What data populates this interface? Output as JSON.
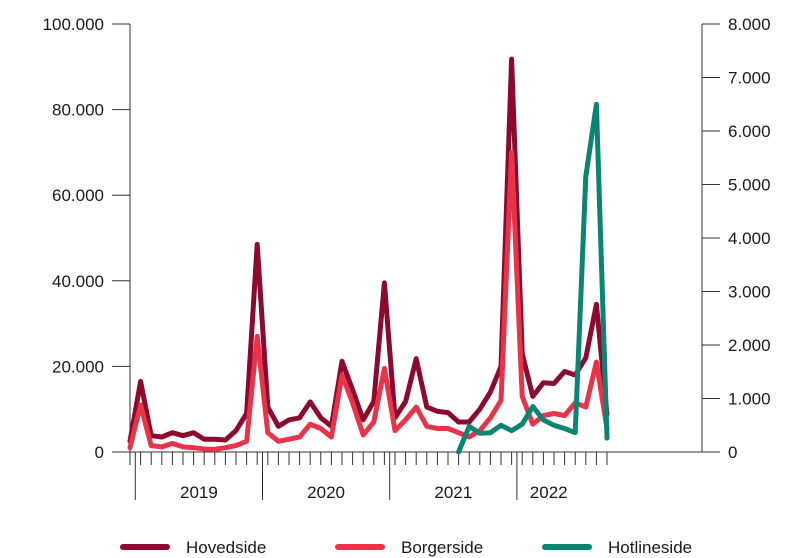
{
  "chart_data": {
    "type": "line",
    "title": "",
    "xlabel": "",
    "ylabel": "",
    "y2label": "",
    "x_start_month": "2018-12",
    "year_labels": [
      {
        "label": "2019",
        "first_index": 1,
        "last_index": 12
      },
      {
        "label": "2020",
        "first_index": 13,
        "last_index": 24
      },
      {
        "label": "2021",
        "first_index": 25,
        "last_index": 36
      },
      {
        "label": "2022",
        "first_index": 37,
        "last_index": 42
      }
    ],
    "ylim": [
      0,
      100000
    ],
    "yticks": [
      0,
      20000,
      40000,
      60000,
      80000,
      100000
    ],
    "ytick_labels": [
      "0",
      "20.000",
      "40.000",
      "60.000",
      "80.000",
      "100.000"
    ],
    "y2lim": [
      0,
      8000
    ],
    "y2ticks": [
      0,
      1000,
      2000,
      3000,
      4000,
      5000,
      6000,
      7000,
      8000
    ],
    "y2tick_labels": [
      "0",
      "1.000",
      "2.000",
      "3.000",
      "4.000",
      "5.000",
      "6.000",
      "7.000",
      "8.000"
    ],
    "grid": false,
    "legend_position": "bottom",
    "series": [
      {
        "name": "Hovedside",
        "axis": "left",
        "color": "#8c0a2e",
        "start_index": 0,
        "values": [
          2500,
          16500,
          3800,
          3500,
          4500,
          3800,
          4500,
          3000,
          3000,
          2800,
          5000,
          9000,
          48500,
          10500,
          6000,
          7500,
          8000,
          11700,
          8000,
          6000,
          21200,
          14500,
          7500,
          11800,
          39500,
          8000,
          11800,
          21800,
          10500,
          9500,
          9200,
          7000,
          7000,
          10000,
          14000,
          20000,
          91800,
          23000,
          13000,
          16200,
          16000,
          18800,
          18000,
          22000,
          34500,
          8800
        ]
      },
      {
        "name": "Borgerside",
        "axis": "left",
        "color": "#e8344b",
        "start_index": 0,
        "values": [
          1000,
          11000,
          1500,
          1200,
          2000,
          1200,
          1000,
          700,
          600,
          1000,
          1500,
          2500,
          27000,
          4500,
          2500,
          3000,
          3500,
          6500,
          5500,
          3500,
          18000,
          11500,
          4000,
          7000,
          19500,
          5000,
          7500,
          10500,
          6000,
          5500,
          5500,
          4500,
          3500,
          5000,
          8000,
          12000,
          70000,
          13000,
          6500,
          8500,
          9000,
          8500,
          11500,
          10500,
          21000,
          5500
        ]
      },
      {
        "name": "Hotlineside",
        "axis": "right",
        "color": "#0b8472",
        "start_index": 31,
        "values": [
          0,
          480,
          350,
          360,
          500,
          400,
          520,
          850,
          600,
          500,
          440,
          360,
          5150,
          6500,
          260
        ]
      }
    ]
  }
}
